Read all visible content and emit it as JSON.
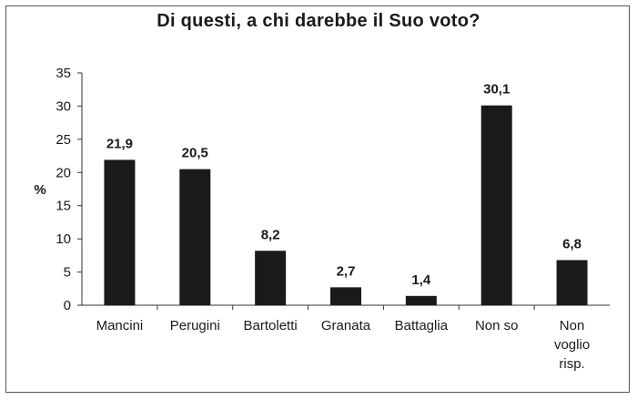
{
  "chart_data": {
    "type": "bar",
    "title": "Di questi, a chi darebbe il Suo voto?",
    "ylabel": "%",
    "xlabel": "",
    "ylim": [
      0,
      35
    ],
    "yticks": [
      "0",
      "5",
      "10",
      "15",
      "20",
      "25",
      "30",
      "35"
    ],
    "categories": [
      [
        "Mancini"
      ],
      [
        "Perugini"
      ],
      [
        "Bartoletti"
      ],
      [
        "Granata"
      ],
      [
        "Battaglia"
      ],
      [
        "Non so"
      ],
      [
        "Non",
        "voglio",
        "risp."
      ]
    ],
    "values": [
      21.9,
      20.5,
      8.2,
      2.7,
      1.4,
      30.1,
      6.8
    ],
    "value_labels": [
      "21,9",
      "20,5",
      "8,2",
      "2,7",
      "1,4",
      "30,1",
      "6,8"
    ],
    "bar_color": "#1a1a1a",
    "grid": false,
    "legend": "none"
  }
}
